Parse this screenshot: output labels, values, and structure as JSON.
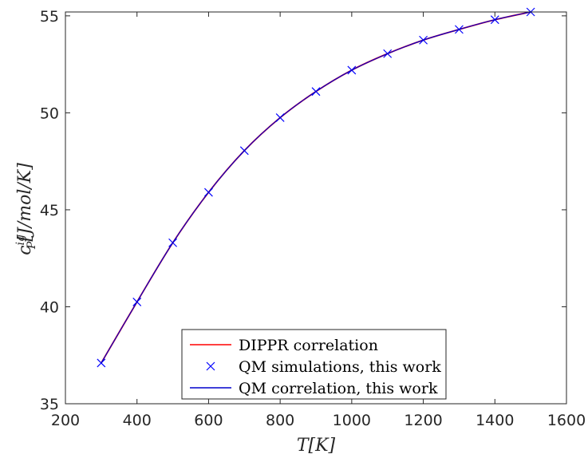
{
  "chart_data": {
    "type": "line",
    "title": "",
    "xlabel": "T[K]",
    "ylabel": "c_P^ig[J/mol/K]",
    "ylabel_parts": {
      "base": "c",
      "sup": "ig",
      "sub": "P",
      "rest": "[J/mol/K]"
    },
    "xlim": [
      200,
      1600
    ],
    "ylim": [
      35,
      55.2
    ],
    "x_ticks": [
      200,
      400,
      600,
      800,
      1000,
      1200,
      1400,
      1600
    ],
    "y_ticks": [
      35,
      40,
      45,
      50,
      55
    ],
    "grid": false,
    "legend_position": "bottom-center",
    "colors": {
      "dippr": "#ff0000",
      "qm_sim": "#0000ff",
      "qm_corr": "#0000cc",
      "axis": "#262626"
    },
    "x": [
      300,
      400,
      500,
      600,
      700,
      800,
      900,
      1000,
      1100,
      1200,
      1300,
      1400,
      1500
    ],
    "series": [
      {
        "name": "DIPPR correlation",
        "style": "line",
        "values": [
          37.1,
          40.25,
          43.3,
          45.9,
          48.05,
          49.75,
          51.1,
          52.2,
          53.05,
          53.75,
          54.3,
          54.8,
          55.2
        ]
      },
      {
        "name": "QM simulations, this work",
        "style": "marker",
        "values": [
          37.1,
          40.25,
          43.3,
          45.9,
          48.05,
          49.75,
          51.1,
          52.2,
          53.05,
          53.75,
          54.3,
          54.8,
          55.2
        ]
      },
      {
        "name": "QM correlation, this work",
        "style": "line",
        "values": [
          37.1,
          40.25,
          43.3,
          45.9,
          48.05,
          49.75,
          51.1,
          52.2,
          53.05,
          53.75,
          54.3,
          54.8,
          55.2
        ]
      }
    ]
  }
}
